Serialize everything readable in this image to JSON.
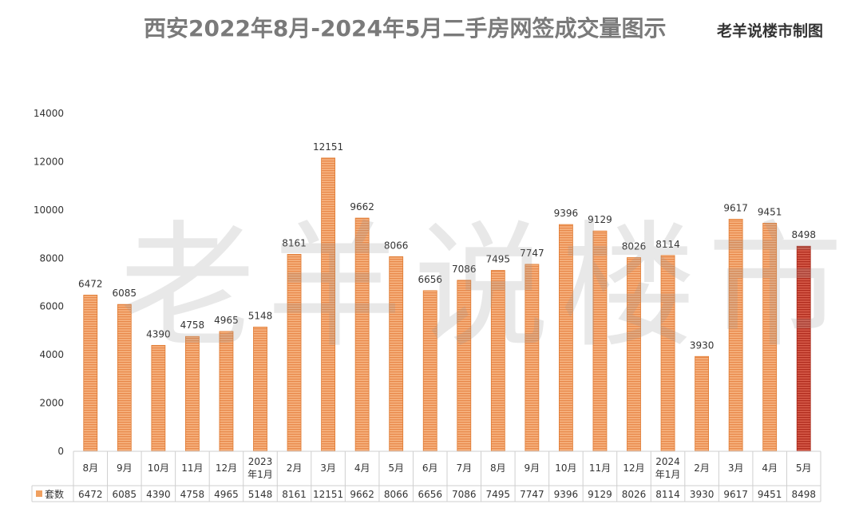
{
  "header": {
    "title": "西安2022年8月-2024年5月二手房网签成交量图示",
    "credit": "老羊说楼市制图"
  },
  "watermark": "老羊说楼市",
  "colors": {
    "bar": "#f0a060",
    "bar_stroke": "#e07a30",
    "highlight_bar": "#c83a2a",
    "highlight_stroke": "#a82a1c",
    "axis_text": "#333333",
    "table_border": "#cfcfcf"
  },
  "chart_data": {
    "type": "bar",
    "categories": [
      "8月",
      "9月",
      "10月",
      "11月",
      "12月",
      "2023年1月",
      "2月",
      "3月",
      "4月",
      "5月",
      "6月",
      "7月",
      "8月",
      "9月",
      "10月",
      "11月",
      "12月",
      "2024年1月",
      "2月",
      "3月",
      "4月",
      "5月"
    ],
    "category_lines": [
      [
        "8月"
      ],
      [
        "9月"
      ],
      [
        "10月"
      ],
      [
        "11月"
      ],
      [
        "12月"
      ],
      [
        "2023",
        "年1月"
      ],
      [
        "2月"
      ],
      [
        "3月"
      ],
      [
        "4月"
      ],
      [
        "5月"
      ],
      [
        "6月"
      ],
      [
        "7月"
      ],
      [
        "8月"
      ],
      [
        "9月"
      ],
      [
        "10月"
      ],
      [
        "11月"
      ],
      [
        "12月"
      ],
      [
        "2024",
        "年1月"
      ],
      [
        "2月"
      ],
      [
        "3月"
      ],
      [
        "4月"
      ],
      [
        "5月"
      ]
    ],
    "series": [
      {
        "name": "套数",
        "values": [
          6472,
          6085,
          4390,
          4758,
          4965,
          5148,
          8161,
          12151,
          9662,
          8066,
          6656,
          7086,
          7495,
          7747,
          9396,
          9129,
          8026,
          8114,
          3930,
          9617,
          9451,
          8498
        ]
      }
    ],
    "data_labels": [
      "6472",
      "6085",
      "4390",
      "4758",
      "4965",
      "5148",
      "8161",
      "12151",
      "9662",
      "8066",
      "6656",
      "7086",
      "7495",
      "7747",
      "9396",
      "9129",
      "8026",
      "8114",
      "3930",
      "9617",
      "9451",
      "8498"
    ],
    "yticks": [
      "0",
      "2000",
      "4000",
      "6000",
      "8000",
      "10000",
      "12000",
      "14000"
    ],
    "ylim": [
      0,
      14000
    ],
    "highlight_index": 21,
    "legend": "data-table-bottom",
    "grid": false
  }
}
